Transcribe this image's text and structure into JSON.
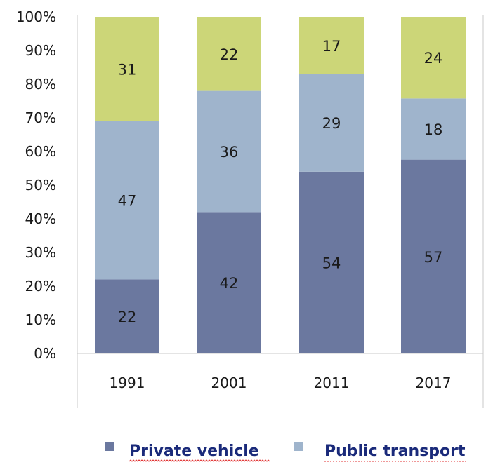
{
  "chart_data": {
    "type": "bar",
    "stacked": true,
    "normalized_percent": true,
    "categories": [
      "1991",
      "2001",
      "2011",
      "2017"
    ],
    "series": [
      {
        "name": "Private vehicle",
        "values": [
          22,
          42,
          54,
          57
        ],
        "color": "#6b789f"
      },
      {
        "name": "Public transport",
        "values": [
          47,
          36,
          29,
          18
        ],
        "color": "#9fb4cc"
      },
      {
        "name": "",
        "values": [
          31,
          22,
          17,
          24
        ],
        "color": "#ccd678"
      }
    ],
    "y_ticks": [
      "0%",
      "10%",
      "20%",
      "30%",
      "40%",
      "50%",
      "60%",
      "70%",
      "80%",
      "90%",
      "100%"
    ],
    "ylim": [
      0,
      100
    ],
    "grid": false,
    "legend_position": "bottom",
    "title": "",
    "xlabel": "",
    "ylabel": ""
  }
}
